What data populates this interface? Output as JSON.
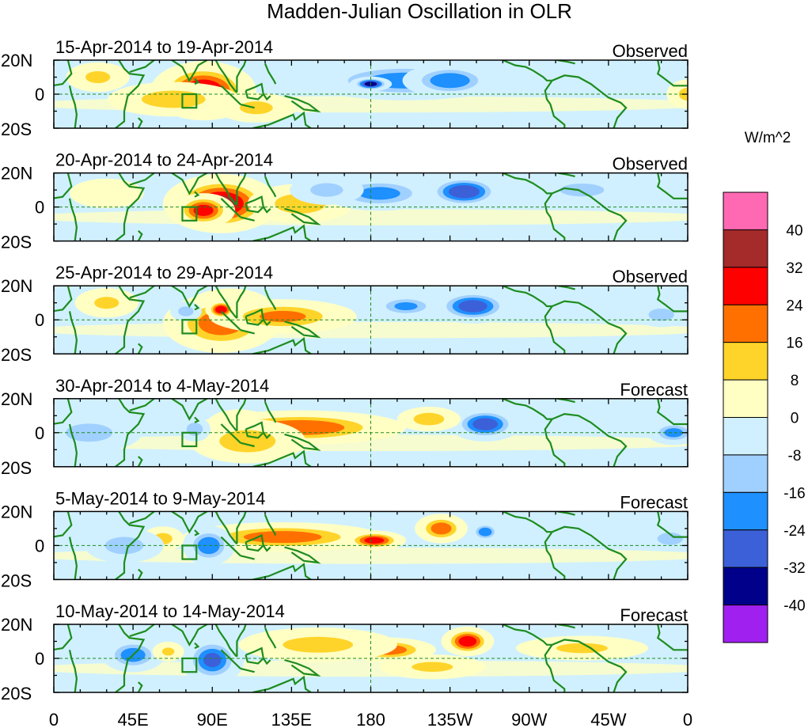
{
  "chart_data": {
    "type": "heatmap",
    "title": "Madden-Julian Oscillation in OLR",
    "units_label": "W/m^2",
    "x_tick_labels": [
      "0",
      "45E",
      "90E",
      "135E",
      "180",
      "135W",
      "90W",
      "45W",
      "0"
    ],
    "x_ticks_lon": [
      0,
      45,
      90,
      135,
      180,
      225,
      270,
      315,
      360
    ],
    "y_tick_labels": [
      "20N",
      "0",
      "20S"
    ],
    "ylim": [
      -20,
      20
    ],
    "xlim": [
      0,
      360
    ],
    "colorbar": {
      "levels": [
        "40",
        "32",
        "24",
        "16",
        "8",
        "0",
        "-8",
        "-16",
        "-24",
        "-32",
        "-40"
      ],
      "colors": [
        "#ff69b4",
        "#a52a2a",
        "#ff0000",
        "#ff7000",
        "#ffd42a",
        "#ffffc4",
        "#d0f0ff",
        "#a0d0ff",
        "#1e90ff",
        "#3c60d8",
        "#00008b",
        "#a020f0"
      ]
    },
    "panels": [
      {
        "period": "15-Apr-2014 to 19-Apr-2014",
        "kind": "Observed",
        "anomalies": [
          {
            "lon": 85,
            "lat": 2,
            "value": 30,
            "rx": 20,
            "ry": 12
          },
          {
            "lon": 68,
            "lat": -3,
            "value": 12,
            "rx": 25,
            "ry": 7
          },
          {
            "lon": 115,
            "lat": -8,
            "value": 9,
            "rx": 15,
            "ry": 6
          },
          {
            "lon": 200,
            "lat": 8,
            "value": -20,
            "rx": 38,
            "ry": 8
          },
          {
            "lon": 180,
            "lat": 6,
            "value": -34,
            "rx": 8,
            "ry": 3
          },
          {
            "lon": 225,
            "lat": 8,
            "value": -22,
            "rx": 18,
            "ry": 7
          },
          {
            "lon": 360,
            "lat": 0,
            "value": 9,
            "rx": 8,
            "ry": 6
          },
          {
            "lon": 25,
            "lat": 10,
            "value": 8,
            "rx": 12,
            "ry": 6
          }
        ]
      },
      {
        "period": "20-Apr-2014 to 24-Apr-2014",
        "kind": "Observed",
        "anomalies": [
          {
            "lon": 95,
            "lat": 2,
            "value": 32,
            "rx": 22,
            "ry": 12
          },
          {
            "lon": 85,
            "lat": -2,
            "value": 26,
            "rx": 12,
            "ry": 7
          },
          {
            "lon": 140,
            "lat": 2,
            "value": 12,
            "rx": 20,
            "ry": 8
          },
          {
            "lon": 185,
            "lat": 8,
            "value": -18,
            "rx": 22,
            "ry": 7
          },
          {
            "lon": 233,
            "lat": 9,
            "value": -30,
            "rx": 16,
            "ry": 7
          },
          {
            "lon": 155,
            "lat": 10,
            "value": -10,
            "rx": 14,
            "ry": 6
          },
          {
            "lon": 30,
            "lat": 8,
            "value": 7,
            "rx": 14,
            "ry": 6
          },
          {
            "lon": 300,
            "lat": 10,
            "value": -9,
            "rx": 20,
            "ry": 6
          }
        ]
      },
      {
        "period": "25-Apr-2014 to 29-Apr-2014",
        "kind": "Observed",
        "anomalies": [
          {
            "lon": 100,
            "lat": 4,
            "value": 28,
            "rx": 18,
            "ry": 10
          },
          {
            "lon": 95,
            "lat": -2,
            "value": 20,
            "rx": 22,
            "ry": 12
          },
          {
            "lon": 130,
            "lat": 2,
            "value": 16,
            "rx": 28,
            "ry": 7
          },
          {
            "lon": 95,
            "lat": 6,
            "value": 30,
            "rx": 6,
            "ry": 4
          },
          {
            "lon": 238,
            "lat": 8,
            "value": -28,
            "rx": 16,
            "ry": 7
          },
          {
            "lon": 200,
            "lat": 8,
            "value": -16,
            "rx": 14,
            "ry": 5
          },
          {
            "lon": 75,
            "lat": 5,
            "value": -12,
            "rx": 6,
            "ry": 4
          },
          {
            "lon": 30,
            "lat": 10,
            "value": 8,
            "rx": 12,
            "ry": 6
          },
          {
            "lon": 345,
            "lat": 3,
            "value": -12,
            "rx": 10,
            "ry": 5
          }
        ]
      },
      {
        "period": "30-Apr-2014 to 4-May-2014",
        "kind": "Forecast",
        "anomalies": [
          {
            "lon": 105,
            "lat": 5,
            "value": 30,
            "rx": 12,
            "ry": 6
          },
          {
            "lon": 140,
            "lat": 3,
            "value": 22,
            "rx": 40,
            "ry": 7
          },
          {
            "lon": 110,
            "lat": -5,
            "value": 12,
            "rx": 22,
            "ry": 9
          },
          {
            "lon": 245,
            "lat": 5,
            "value": -28,
            "rx": 14,
            "ry": 7
          },
          {
            "lon": 213,
            "lat": 8,
            "value": 12,
            "rx": 12,
            "ry": 5
          },
          {
            "lon": 80,
            "lat": 2,
            "value": -14,
            "rx": 6,
            "ry": 5
          },
          {
            "lon": 352,
            "lat": 0,
            "value": -18,
            "rx": 10,
            "ry": 5
          },
          {
            "lon": 20,
            "lat": 0,
            "value": -10,
            "rx": 20,
            "ry": 8
          }
        ]
      },
      {
        "period": "5-May-2014 to 9-May-2014",
        "kind": "Forecast",
        "anomalies": [
          {
            "lon": 130,
            "lat": 5,
            "value": 20,
            "rx": 38,
            "ry": 6
          },
          {
            "lon": 182,
            "lat": 3,
            "value": 26,
            "rx": 12,
            "ry": 4
          },
          {
            "lon": 220,
            "lat": 10,
            "value": 20,
            "rx": 10,
            "ry": 6
          },
          {
            "lon": 88,
            "lat": 0,
            "value": -22,
            "rx": 10,
            "ry": 8
          },
          {
            "lon": 245,
            "lat": 8,
            "value": -22,
            "rx": 6,
            "ry": 4
          },
          {
            "lon": 62,
            "lat": 4,
            "value": 10,
            "rx": 8,
            "ry": 5
          },
          {
            "lon": 40,
            "lat": 0,
            "value": -12,
            "rx": 15,
            "ry": 7
          },
          {
            "lon": 350,
            "lat": 4,
            "value": -12,
            "rx": 10,
            "ry": 5
          }
        ]
      },
      {
        "period": "10-May-2014 to 14-May-2014",
        "kind": "Forecast",
        "anomalies": [
          {
            "lon": 235,
            "lat": 10,
            "value": 28,
            "rx": 10,
            "ry": 6
          },
          {
            "lon": 190,
            "lat": 5,
            "value": 20,
            "rx": 18,
            "ry": 5
          },
          {
            "lon": 150,
            "lat": 8,
            "value": 10,
            "rx": 30,
            "ry": 7
          },
          {
            "lon": 90,
            "lat": -1,
            "value": -24,
            "rx": 12,
            "ry": 10
          },
          {
            "lon": 45,
            "lat": 2,
            "value": -20,
            "rx": 12,
            "ry": 7
          },
          {
            "lon": 300,
            "lat": 6,
            "value": 8,
            "rx": 25,
            "ry": 5
          },
          {
            "lon": 65,
            "lat": 4,
            "value": 8,
            "rx": 6,
            "ry": 4
          },
          {
            "lon": 215,
            "lat": -5,
            "value": 8,
            "rx": 20,
            "ry": 5
          }
        ]
      }
    ]
  }
}
